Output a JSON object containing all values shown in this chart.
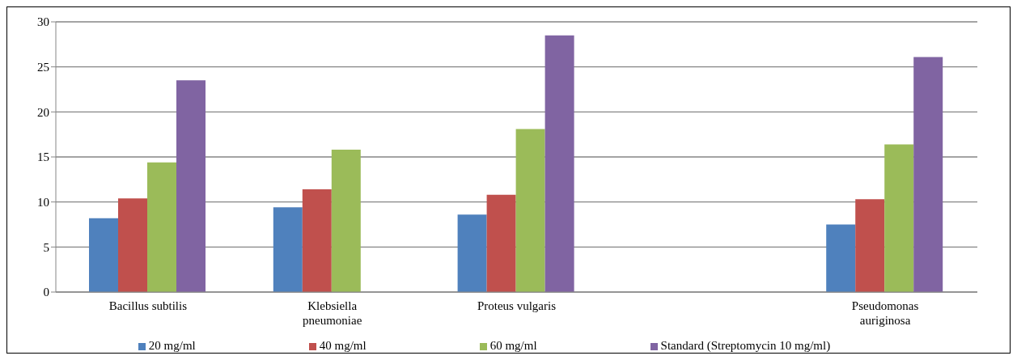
{
  "chart_data": {
    "type": "bar",
    "categories": [
      "Bacillus subtilis",
      "Klebsiella  pneumoniae",
      "Proteus vulgaris",
      null,
      "Pseudomonas auriginosa"
    ],
    "series": [
      {
        "name": "20 mg/ml",
        "color": "#4f81bd",
        "values": [
          8.2,
          9.4,
          8.6,
          null,
          7.5
        ]
      },
      {
        "name": "40 mg/ml",
        "color": "#c0504d",
        "values": [
          10.4,
          11.4,
          10.8,
          null,
          10.3
        ]
      },
      {
        "name": "60 mg/ml",
        "color": "#9bbb59",
        "values": [
          14.4,
          15.8,
          18.1,
          null,
          16.4
        ]
      },
      {
        "name": "Standard (Streptomycin 10 mg/ml)",
        "color": "#8064a2",
        "values": [
          23.5,
          null,
          28.5,
          null,
          26.1
        ]
      }
    ],
    "ylim": [
      0,
      30
    ],
    "yticks": [
      0,
      5,
      10,
      15,
      20,
      25,
      30
    ],
    "grid": "y",
    "legend": "bottom"
  }
}
